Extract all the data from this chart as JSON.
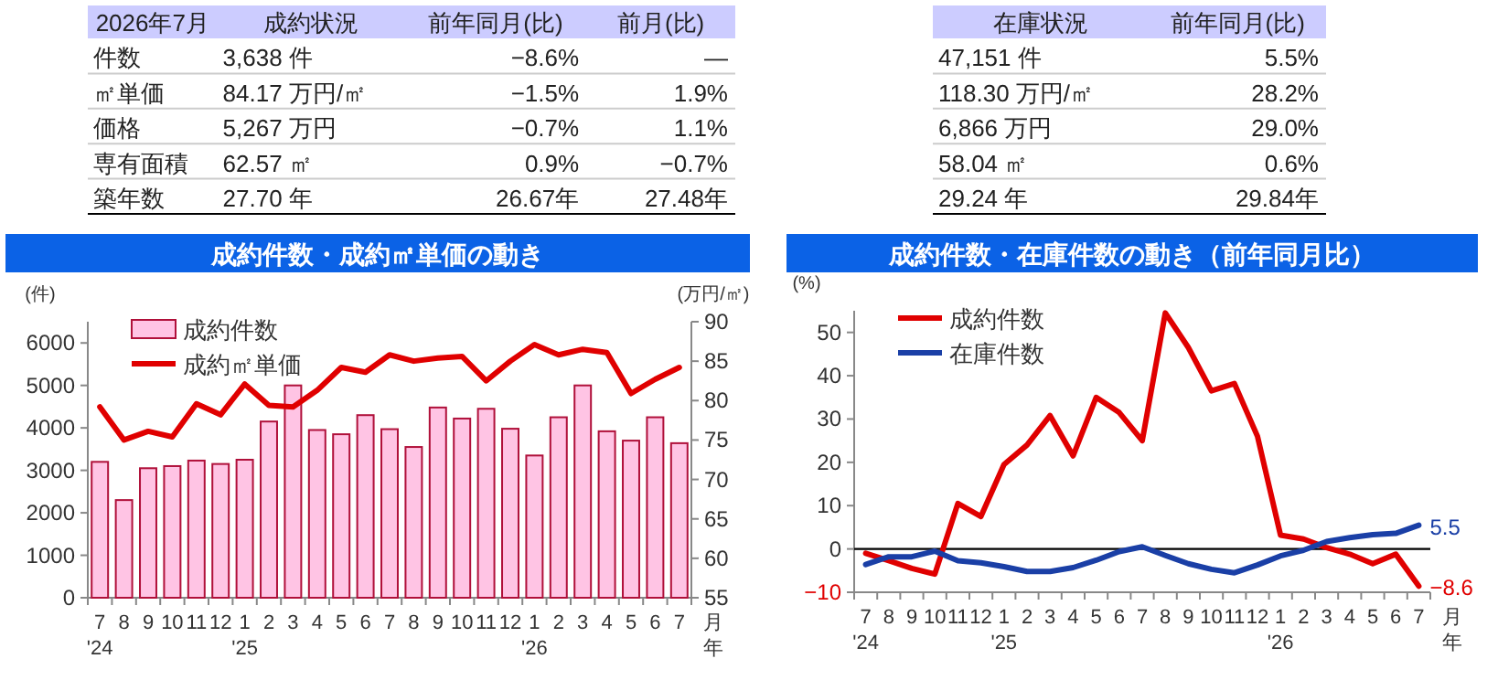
{
  "chart_data": [
    {
      "type": "other",
      "categories": [
        "2026年7月",
        "成約状況",
        "前年同月(比)",
        "前月(比)"
      ],
      "annotations": [
        "件数",
        "3,638 件",
        "−8.6%",
        "—",
        "㎡単価",
        "84.17 万円/㎡",
        "−1.5%",
        "1.9%",
        "価格",
        "5,267 万円",
        "−0.7%",
        "1.1%",
        "専有面積",
        "62.57 ㎡",
        "0.9%",
        "−0.7%",
        "築年数",
        "27.70 年",
        "26.67年",
        "27.48年"
      ]
    },
    {
      "type": "other",
      "categories": [
        "在庫状況",
        "前年同月(比)"
      ],
      "annotations": [
        "47,151 件",
        "5.5%",
        "118.30 万円/㎡",
        "28.2%",
        "6,866 万円",
        "29.0%",
        "58.04 ㎡",
        "0.6%",
        "29.24 年",
        "29.84年"
      ]
    },
    {
      "type": "bar",
      "title": "成約件数・成約㎡単価の動き",
      "ylabel": "(件)",
      "y2label": "(万円/㎡)",
      "xlabel": "月年",
      "categories": [
        "7\n'24",
        "8",
        "9",
        "10",
        "11",
        "12",
        "1\n'25",
        "2",
        "3",
        "4",
        "5",
        "6",
        "7",
        "8",
        "9",
        "10",
        "11",
        "12",
        "1\n'26",
        "2",
        "3",
        "4",
        "5",
        "6",
        "7"
      ],
      "ylim": [
        0,
        6500
      ],
      "yticks": [
        0,
        1000,
        2000,
        3000,
        4000,
        5000,
        6000
      ],
      "y2lim": [
        55,
        90
      ],
      "y2ticks": [
        55,
        60,
        65,
        70,
        75,
        80,
        85,
        90
      ],
      "legend": "top left",
      "series": [
        {
          "name": "成約件数",
          "type": "bar",
          "color": "#ffc4e4",
          "values": [
            3200,
            2300,
            3050,
            3100,
            3230,
            3150,
            3250,
            4150,
            5000,
            3950,
            3850,
            4300,
            3970,
            3550,
            4480,
            4220,
            4450,
            3980,
            3350,
            4250,
            5000,
            3920,
            3700,
            4250,
            3640
          ]
        },
        {
          "name": "成約㎡単価",
          "type": "line",
          "axis": "y2",
          "color": "#e00000",
          "values": [
            79.2,
            75.0,
            76.1,
            75.4,
            79.6,
            78.2,
            82.1,
            79.4,
            79.2,
            81.3,
            84.2,
            83.6,
            85.8,
            85.0,
            85.4,
            85.6,
            82.5,
            85.0,
            87.1,
            85.8,
            86.5,
            86.1,
            80.9,
            82.7,
            84.2
          ]
        }
      ]
    },
    {
      "type": "line",
      "title": "成約件数・在庫件数の動き（前年同月比）",
      "ylabel": "(%)",
      "xlabel": "月年",
      "categories": [
        "7\n'24",
        "8",
        "9",
        "10",
        "11",
        "12",
        "1\n'25",
        "2",
        "3",
        "4",
        "5",
        "6",
        "7",
        "8",
        "9",
        "10",
        "11",
        "12",
        "1\n'26",
        "2",
        "3",
        "4",
        "5",
        "6",
        "7"
      ],
      "ylim": [
        -10,
        55
      ],
      "yticks": [
        -10,
        0,
        10,
        20,
        30,
        40,
        50
      ],
      "legend": "top left",
      "ref_lines": [
        {
          "axis": "y",
          "value": 0,
          "color": "#000000"
        }
      ],
      "series": [
        {
          "name": "成約件数",
          "color": "#e00000",
          "values": [
            -1,
            -2.7,
            -4.5,
            -5.8,
            10.5,
            7.5,
            19.5,
            24,
            30.8,
            21.5,
            35,
            31.5,
            25,
            54.5,
            46.5,
            36.5,
            38.2,
            26,
            3.2,
            2.3,
            0.3,
            -1.2,
            -3.4,
            -1.2,
            -8.6
          ],
          "value_labels": [
            null,
            null,
            null,
            null,
            null,
            null,
            null,
            null,
            null,
            null,
            null,
            null,
            null,
            null,
            null,
            null,
            null,
            null,
            null,
            null,
            null,
            null,
            null,
            null,
            "−8.6"
          ]
        },
        {
          "name": "在庫件数",
          "color": "#1a3fa6",
          "values": [
            -3.6,
            -1.8,
            -1.8,
            -0.5,
            -2.7,
            -3.2,
            -4.1,
            -5.2,
            -5.2,
            -4.3,
            -2.6,
            -0.6,
            0.5,
            -1.5,
            -3.4,
            -4.7,
            -5.5,
            -3.7,
            -1.6,
            -0.3,
            1.7,
            2.6,
            3.3,
            3.6,
            5.5
          ],
          "value_labels": [
            null,
            null,
            null,
            null,
            null,
            null,
            null,
            null,
            null,
            null,
            null,
            null,
            null,
            null,
            null,
            null,
            null,
            null,
            null,
            null,
            null,
            null,
            null,
            null,
            "5.5"
          ]
        }
      ]
    }
  ]
}
